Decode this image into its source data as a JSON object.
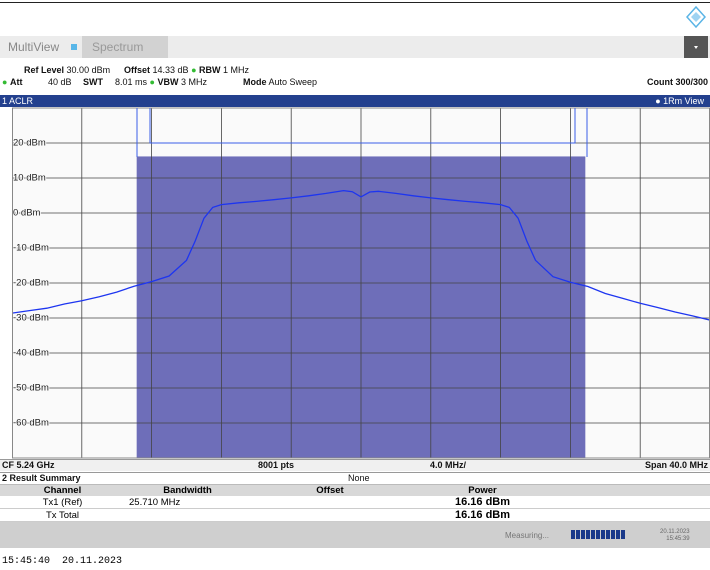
{
  "header": {
    "tabs": [
      "MultiView",
      "Spectrum"
    ]
  },
  "settings": {
    "row1": [
      {
        "label": "Ref Level",
        "value": "30.00 dBm"
      },
      {
        "label": "Offset",
        "value": "14.33 dB"
      },
      {
        "label": "RBW",
        "value": "1 MHz"
      }
    ],
    "row2": [
      {
        "label": "Att",
        "value": "40 dB"
      },
      {
        "label": "SWT",
        "value": "8.01 ms"
      },
      {
        "label": "VBW",
        "value": "3 MHz"
      },
      {
        "label": "Mode",
        "value": "Auto Sweep"
      }
    ],
    "count": "Count 300/300"
  },
  "window": {
    "title": "1 ACLR",
    "view": "1Rm View"
  },
  "chart_data": {
    "type": "line",
    "color": "#1d35f0",
    "channel_color": "#6e6eb9",
    "grid": true,
    "x": [
      -20,
      -19,
      -18,
      -17,
      -16,
      -15,
      -14,
      -13,
      -12,
      -11,
      -10,
      -9.5,
      -9,
      -8.5,
      -8,
      -7,
      -6,
      -5,
      -4,
      -3,
      -2,
      -1,
      -0.5,
      0,
      0.5,
      1,
      2,
      3,
      4,
      5,
      6,
      7,
      8,
      8.5,
      9,
      9.5,
      10,
      11,
      12,
      13,
      14,
      15,
      16,
      17,
      18,
      19,
      20
    ],
    "values": [
      -28.6,
      -27.9,
      -27.2,
      -26.0,
      -25.1,
      -23.9,
      -22.6,
      -20.9,
      -19.6,
      -18.0,
      -13.5,
      -8.0,
      -1.5,
      1.6,
      2.4,
      2.9,
      3.3,
      3.8,
      4.3,
      4.9,
      5.6,
      6.4,
      6.1,
      4.6,
      6.0,
      6.2,
      5.6,
      4.9,
      4.3,
      3.8,
      3.3,
      2.9,
      2.4,
      1.6,
      -1.5,
      -8.0,
      -13.5,
      -18.2,
      -19.8,
      -21.0,
      -23.0,
      -24.4,
      -25.8,
      -27.0,
      -28.3,
      -29.4,
      -30.6
    ],
    "xlim": [
      -20,
      20
    ],
    "xticks": [
      -20,
      -16,
      -12,
      -8,
      -4,
      0,
      4,
      8,
      12,
      16,
      20
    ],
    "ylim": [
      -70,
      30
    ],
    "yticks": [
      {
        "value": 20,
        "label": "20 dBm"
      },
      {
        "value": 10,
        "label": "10 dBm"
      },
      {
        "value": 0,
        "label": "0 dBm"
      },
      {
        "value": -10,
        "label": "-10 dBm"
      },
      {
        "value": -20,
        "label": "-20 dBm"
      },
      {
        "value": -30,
        "label": "-30 dBm"
      },
      {
        "value": -40,
        "label": "-40 dBm"
      },
      {
        "value": -50,
        "label": "-50 dBm"
      },
      {
        "value": -60,
        "label": "-60 dBm"
      }
    ],
    "center_label": "CF 5.24 GHz",
    "points_label": "8001 pts",
    "div_label": "4.0 MHz/",
    "span_label": "Span 40.0 MHz"
  },
  "result_summary": {
    "title": "2 Result Summary",
    "standard": "None",
    "columns": [
      "Channel",
      "Bandwidth",
      "Offset",
      "Power"
    ],
    "rows": [
      [
        "Tx1 (Ref)",
        {
          "value": 25.71,
          "label": "25.710 MHz"
        },
        null,
        {
          "value": 16.16,
          "label": "16.16 dBm"
        }
      ],
      [
        "Tx Total",
        null,
        null,
        {
          "value": 16.16,
          "label": "16.16 dBm"
        }
      ]
    ]
  },
  "status": {
    "state": "Measuring...",
    "date": "20.11.2023",
    "time": "15:45:39"
  },
  "footer": "15:45:40  20.11.2023"
}
